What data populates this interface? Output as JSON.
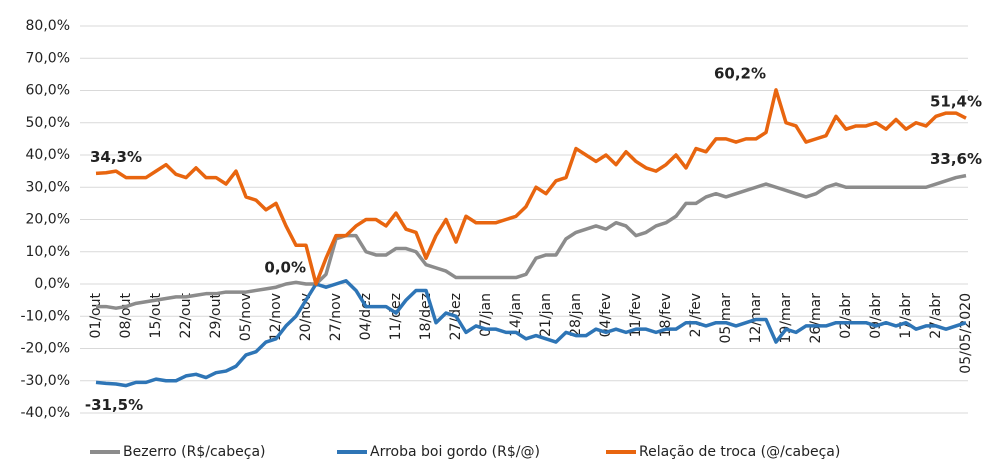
{
  "chart_data": {
    "type": "line",
    "categories": [
      "01/out",
      null,
      null,
      "08/out",
      null,
      null,
      "15/out",
      null,
      null,
      "22/out",
      null,
      null,
      "29/out",
      null,
      null,
      "05/nov",
      null,
      null,
      "12/nov",
      null,
      null,
      "20/nov",
      null,
      null,
      "27/nov",
      null,
      null,
      "04/dez",
      null,
      null,
      "11/dez",
      null,
      null,
      "18/dez",
      null,
      null,
      "27/dez",
      null,
      null,
      "07/jan",
      null,
      null,
      "14/jan",
      null,
      null,
      "21/jan",
      null,
      null,
      "28/jan",
      null,
      null,
      "04/fev",
      null,
      null,
      "11/fev",
      null,
      null,
      "18/fev",
      null,
      null,
      "27/fev",
      null,
      null,
      "05/mar",
      null,
      null,
      "12/mar",
      null,
      null,
      "19/mar",
      null,
      null,
      "26/mar",
      null,
      null,
      "02/abr",
      null,
      null,
      "09/abr",
      null,
      null,
      "17/abr",
      null,
      null,
      "27/abr",
      null,
      null,
      "05/05/2020"
    ],
    "series": [
      {
        "name": "Bezerro (R$/cabeça)",
        "color": "#8c8c8c",
        "values": [
          -7,
          -7,
          -7.5,
          -7,
          -6,
          -5.5,
          -5,
          -4.5,
          -4,
          -4,
          -3.5,
          -3,
          -3,
          -2.5,
          -2.5,
          -2.5,
          -2,
          -1.5,
          -1,
          0,
          0.5,
          0,
          0,
          3,
          14,
          15,
          15,
          10,
          9,
          9,
          11,
          11,
          10,
          6,
          5,
          4,
          2,
          2,
          2,
          2,
          2,
          2,
          2,
          3,
          8,
          9,
          9,
          14,
          16,
          17,
          18,
          17,
          19,
          18,
          15,
          16,
          18,
          19,
          21,
          25,
          25,
          27,
          28,
          27,
          28,
          29,
          30,
          31,
          30,
          29,
          28,
          27,
          28,
          30,
          31,
          30,
          30,
          30,
          30,
          30,
          30,
          30,
          30,
          30,
          31,
          32,
          33,
          33.6
        ],
        "value_labels": [
          null,
          null,
          null,
          null,
          null,
          null,
          null,
          null,
          null,
          null,
          null,
          null,
          null,
          null,
          null,
          null,
          null,
          null,
          null,
          null,
          null,
          null,
          null,
          null,
          null,
          null,
          null,
          null,
          null,
          null,
          null,
          null,
          null,
          null,
          null,
          null,
          null,
          null,
          null,
          null,
          null,
          null,
          null,
          null,
          null,
          null,
          null,
          null,
          null,
          null,
          null,
          null,
          null,
          null,
          null,
          null,
          null,
          null,
          null,
          null,
          null,
          null,
          null,
          null,
          null,
          null,
          null,
          null,
          null,
          null,
          null,
          null,
          null,
          null,
          null,
          null,
          null,
          null,
          null,
          null,
          null,
          null,
          null,
          null,
          null,
          null,
          null,
          "33,6%"
        ]
      },
      {
        "name": "Arroba boi gordo (R$/@)",
        "color": "#2e75b6",
        "values": [
          -30.5,
          -30.8,
          -31,
          -31.5,
          -30.5,
          -30.5,
          -29.5,
          -30,
          -30,
          -28.5,
          -28,
          -29,
          -27.5,
          -27,
          -25.5,
          -22,
          -21,
          -18,
          -17,
          -13,
          -10,
          -5,
          0,
          -1,
          0,
          1,
          -2,
          -7,
          -7,
          -7,
          -9,
          -5,
          -2,
          -2,
          -12,
          -9,
          -10,
          -15,
          -13,
          -14,
          -14,
          -15,
          -15,
          -17,
          -16,
          -17,
          -18,
          -15,
          -16,
          -16,
          -14,
          -15,
          -14,
          -15,
          -14,
          -14,
          -15,
          -14,
          -14,
          -12,
          -12,
          -13,
          -12,
          -12,
          -13,
          -12,
          -11,
          -11,
          -18,
          -14,
          -15,
          -13,
          -13,
          -13,
          -12,
          -12,
          -12,
          -12,
          -13,
          -12,
          -13,
          -12,
          -14,
          -13,
          -13,
          -14,
          -13,
          -12
        ],
        "value_labels": [
          null,
          null,
          null,
          "-31,5%",
          null,
          null,
          null,
          null,
          null,
          null,
          null,
          null,
          null,
          null,
          null,
          null,
          null,
          null,
          null,
          null,
          null,
          null,
          null,
          null,
          null,
          null,
          null,
          null,
          null,
          null,
          null,
          null,
          null,
          null,
          null,
          null,
          null,
          null,
          null,
          null,
          null,
          null,
          null,
          null,
          null,
          null,
          null,
          null,
          null,
          null,
          null,
          null,
          null,
          null,
          null,
          null,
          null,
          null,
          null,
          null,
          null,
          null,
          null,
          null,
          null,
          null,
          null,
          null,
          null,
          null,
          null,
          null,
          null,
          null,
          null,
          null,
          null,
          null,
          null,
          null,
          null,
          null,
          null,
          null,
          null,
          null,
          null,
          null
        ]
      },
      {
        "name": "Relação de troca (@/cabeça)",
        "color": "#e8650f",
        "values": [
          34.3,
          34.5,
          35,
          33,
          33,
          33,
          35,
          37,
          34,
          33,
          36,
          33,
          33,
          31,
          35,
          27,
          26,
          23,
          25,
          18,
          12,
          12,
          0,
          8,
          15,
          15,
          18,
          20,
          20,
          18,
          22,
          17,
          16,
          8,
          15,
          20,
          13,
          21,
          19,
          19,
          19,
          20,
          21,
          24,
          30,
          28,
          32,
          33,
          42,
          40,
          38,
          40,
          37,
          41,
          38,
          36,
          35,
          37,
          40,
          36,
          42,
          41,
          45,
          45,
          44,
          45,
          45,
          47,
          60.2,
          50,
          49,
          44,
          45,
          46,
          52,
          48,
          49,
          49,
          50,
          48,
          51,
          48,
          50,
          49,
          52,
          53,
          53,
          51.4
        ],
        "value_labels": [
          "34,3%",
          null,
          null,
          null,
          null,
          null,
          null,
          null,
          null,
          null,
          null,
          null,
          null,
          null,
          null,
          null,
          null,
          null,
          null,
          null,
          null,
          null,
          "0,0%",
          null,
          null,
          null,
          null,
          null,
          null,
          null,
          null,
          null,
          null,
          null,
          null,
          null,
          null,
          null,
          null,
          null,
          null,
          null,
          null,
          null,
          null,
          null,
          null,
          null,
          null,
          null,
          null,
          null,
          null,
          null,
          null,
          null,
          null,
          null,
          null,
          null,
          null,
          null,
          null,
          null,
          null,
          null,
          null,
          null,
          "60,2%",
          null,
          null,
          null,
          null,
          null,
          null,
          null,
          null,
          null,
          null,
          null,
          null,
          null,
          null,
          null,
          null,
          null,
          null,
          "51,4%"
        ]
      }
    ],
    "ylim": [
      -40,
      80
    ],
    "yticks": [
      {
        "value": -40,
        "label": "-40,0%"
      },
      {
        "value": -30,
        "label": "-30,0%"
      },
      {
        "value": -20,
        "label": "-20,0%"
      },
      {
        "value": -10,
        "label": "-10,0%"
      },
      {
        "value": 0,
        "label": "0,0%"
      },
      {
        "value": 10,
        "label": "10,0%"
      },
      {
        "value": 20,
        "label": "20,0%"
      },
      {
        "value": 30,
        "label": "30,0%"
      },
      {
        "value": 40,
        "label": "40,0%"
      },
      {
        "value": 50,
        "label": "50,0%"
      },
      {
        "value": 60,
        "label": "60,0%"
      },
      {
        "value": 70,
        "label": "70,0%"
      },
      {
        "value": 80,
        "label": "80,0%"
      }
    ],
    "grid": true,
    "legend": "bottom"
  }
}
